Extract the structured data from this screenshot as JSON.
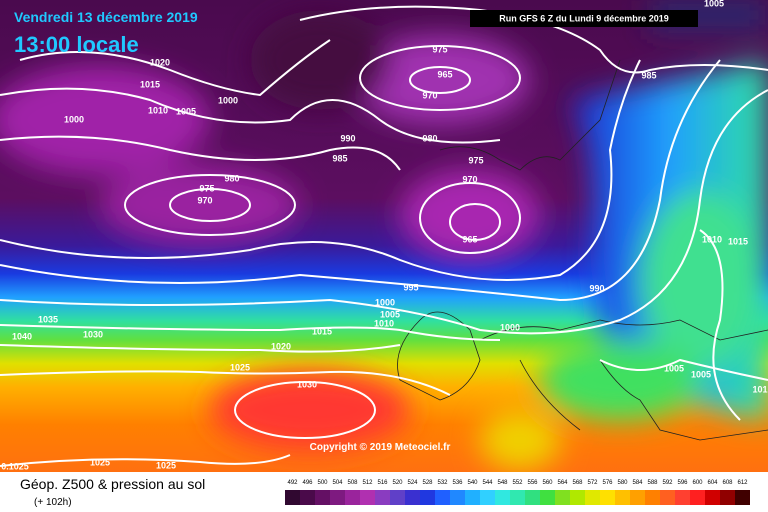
{
  "header": {
    "date": "Vendredi 13 décembre 2019",
    "time": "13:00 locale",
    "run": "Run GFS 6 Z du Lundi 9 décembre 2019"
  },
  "isobar_labels": [
    "1020",
    "1015",
    "1010",
    "1005",
    "1000",
    "1000",
    "975",
    "965",
    "970",
    "990",
    "985",
    "980",
    "980",
    "975",
    "970",
    "975",
    "970",
    "965",
    "985",
    "1005",
    "995",
    "990",
    "1000",
    "1005",
    "1010",
    "1015",
    "1020",
    "1025",
    "1030",
    "1035",
    "1030",
    "1040",
    "1010",
    "1015",
    "1000",
    "1005",
    "1005",
    "101",
    "0.1025",
    "1025",
    "1025"
  ],
  "copyright": "Copyright © 2019 Meteociel.fr",
  "footer": {
    "title": "Géop. Z500 & pression au sol",
    "lead": "(+ 102h)"
  },
  "scale": {
    "ticks": [
      492,
      496,
      500,
      504,
      508,
      512,
      516,
      520,
      524,
      528,
      532,
      536,
      540,
      544,
      548,
      552,
      556,
      560,
      564,
      568,
      572,
      576,
      580,
      584,
      588,
      592,
      596,
      600,
      604,
      608,
      612
    ]
  }
}
